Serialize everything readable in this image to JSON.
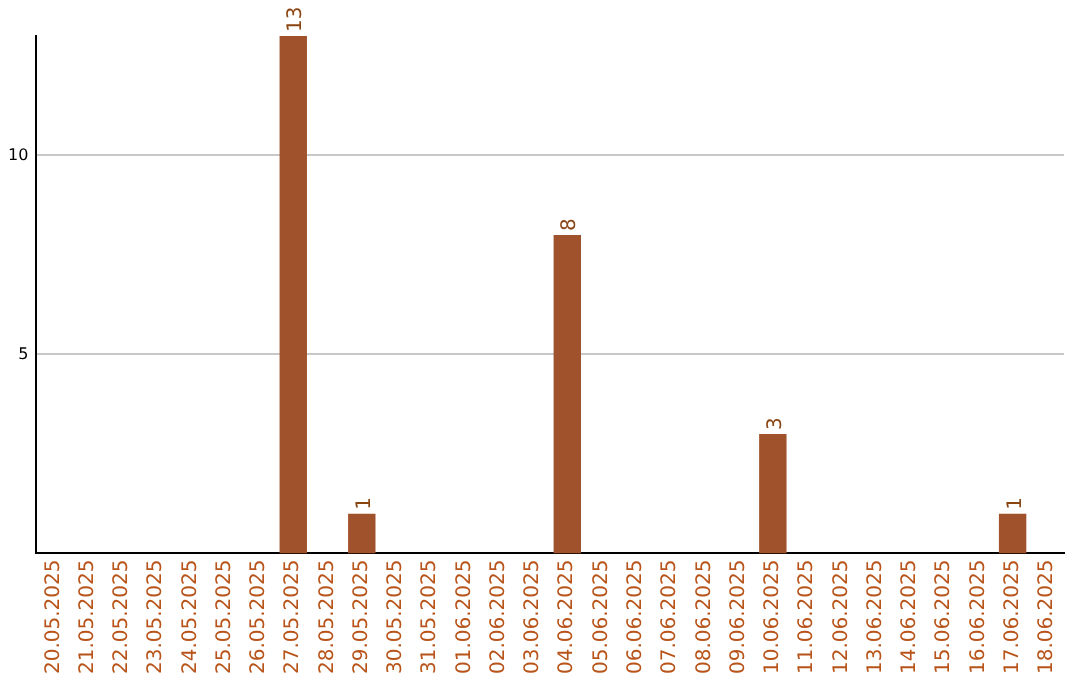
{
  "chart_data": {
    "type": "bar",
    "categories": [
      "20.05.2025",
      "21.05.2025",
      "22.05.2025",
      "23.05.2025",
      "24.05.2025",
      "25.05.2025",
      "26.05.2025",
      "27.05.2025",
      "28.05.2025",
      "29.05.2025",
      "30.05.2025",
      "31.05.2025",
      "01.06.2025",
      "02.06.2025",
      "03.06.2025",
      "04.06.2025",
      "05.06.2025",
      "06.06.2025",
      "07.06.2025",
      "08.06.2025",
      "09.06.2025",
      "10.06.2025",
      "11.06.2025",
      "12.06.2025",
      "13.06.2025",
      "14.06.2025",
      "15.06.2025",
      "16.06.2025",
      "17.06.2025",
      "18.06.2025"
    ],
    "values": [
      0,
      0,
      0,
      0,
      0,
      0,
      0,
      13,
      0,
      1,
      0,
      0,
      0,
      0,
      0,
      8,
      0,
      0,
      0,
      0,
      0,
      3,
      0,
      0,
      0,
      0,
      0,
      0,
      1,
      0
    ],
    "value_labels": [
      null,
      null,
      null,
      null,
      null,
      null,
      null,
      "13",
      null,
      "1",
      null,
      null,
      null,
      null,
      null,
      "8",
      null,
      null,
      null,
      null,
      null,
      "3",
      null,
      null,
      null,
      null,
      null,
      null,
      "1",
      null
    ],
    "color": "#a0522d",
    "ylim": [
      0,
      13
    ],
    "yticks": [
      5,
      10
    ],
    "grid": "y",
    "legend": false
  }
}
